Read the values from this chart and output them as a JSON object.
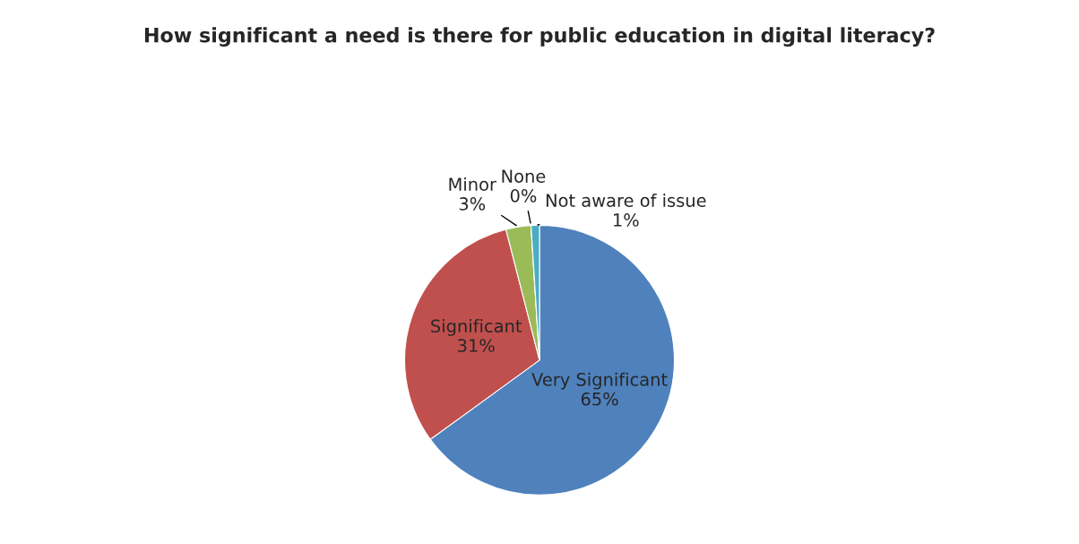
{
  "chart_data": {
    "type": "pie",
    "title": "How significant a need is there for public education in digital literacy?",
    "categories": [
      "Very Significant",
      "Significant",
      "Minor",
      "None",
      "Not aware of issue"
    ],
    "values": [
      65,
      31,
      3,
      0,
      1
    ],
    "colors": [
      "#4f81bd",
      "#c0504d",
      "#9bbb59",
      "#8064a2",
      "#4bacc6"
    ],
    "value_labels": [
      "65%",
      "31%",
      "3%",
      "0%",
      "1%"
    ],
    "legend": false
  }
}
